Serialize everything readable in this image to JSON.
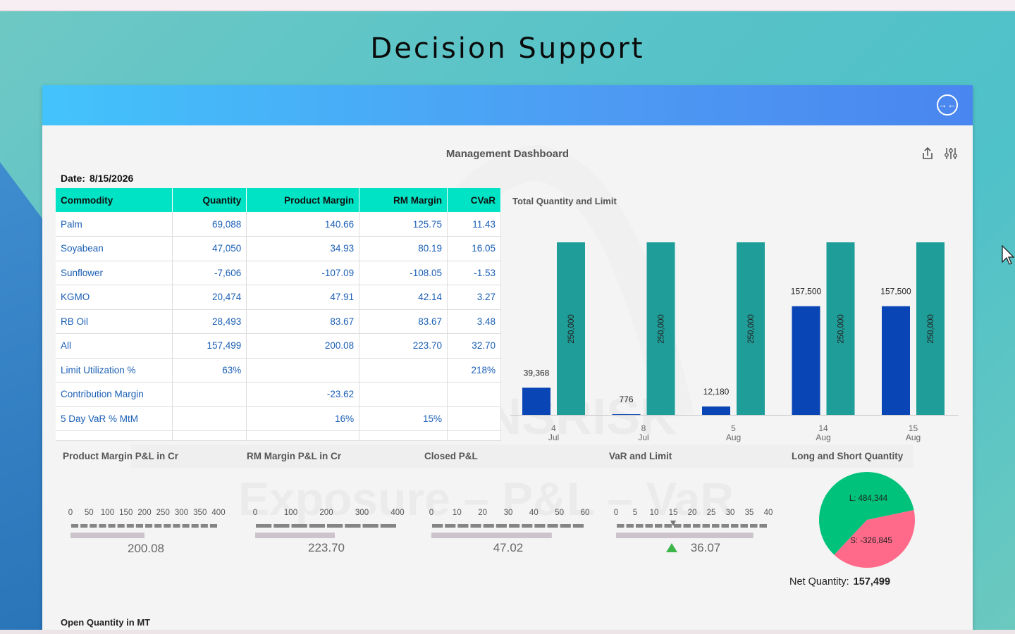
{
  "page": {
    "title": "Decision Support"
  },
  "header": {
    "collapse_icon": "collapse-icon"
  },
  "dashboard": {
    "title": "Management Dashboard",
    "date_label": "Date:",
    "date_value": "8/15/2026",
    "icons": [
      "share-icon",
      "settings-sliders-icon"
    ]
  },
  "table": {
    "columns": [
      "Commodity",
      "Quantity",
      "Product Margin",
      "RM Margin",
      "CVaR"
    ],
    "rows": [
      [
        "Palm",
        "69,088",
        "140.66",
        "125.75",
        "11.43"
      ],
      [
        "Soyabean",
        "47,050",
        "34.93",
        "80.19",
        "16.05"
      ],
      [
        "Sunflower",
        "-7,606",
        "-107.09",
        "-108.05",
        "-1.53"
      ],
      [
        "KGMO",
        "20,474",
        "47.91",
        "42.14",
        "3.27"
      ],
      [
        "RB Oil",
        "28,493",
        "83.67",
        "83.67",
        "3.48"
      ],
      [
        "All",
        "157,499",
        "200.08",
        "223.70",
        "32.70"
      ],
      [
        "Limit Utilization %",
        "63%",
        "",
        "",
        "218%"
      ],
      [
        "Contribution Margin",
        "",
        "-23.62",
        "",
        ""
      ],
      [
        "5 Day VaR % MtM",
        "",
        "16%",
        "15%",
        ""
      ]
    ]
  },
  "chart_data": {
    "type": "bar",
    "title": "Total Quantity and Limit",
    "categories": [
      [
        "4",
        "Jul"
      ],
      [
        "8",
        "Jul"
      ],
      [
        "5",
        "Aug"
      ],
      [
        "14",
        "Aug"
      ],
      [
        "15",
        "Aug"
      ]
    ],
    "series": [
      {
        "values": [
          39368,
          776,
          12180,
          157500,
          157500
        ],
        "labels": [
          "39,368",
          "776",
          "12,180",
          "157,500",
          "157,500"
        ],
        "color": "#0a45b5"
      },
      {
        "values": [
          250000,
          250000,
          250000,
          250000,
          250000
        ],
        "labels": [
          "250,000",
          "250,000",
          "250,000",
          "250,000",
          "250,000"
        ],
        "color": "#1f9d98"
      }
    ],
    "ylim": [
      0,
      250000
    ],
    "grid": false,
    "legend": "none"
  },
  "sections": {
    "product_margin": {
      "label": "Product Margin P&L in Cr",
      "ticks": [
        "0",
        "50",
        "100",
        "150",
        "200",
        "250",
        "300",
        "350",
        "400"
      ],
      "min": 0,
      "max": 400,
      "value": 200.08,
      "value_text": "200.08"
    },
    "rm_margin": {
      "label": "RM Margin P&L in Cr",
      "ticks": [
        "0",
        "100",
        "200",
        "300",
        "400"
      ],
      "min": 0,
      "max": 400,
      "value": 223.7,
      "value_text": "223.70"
    },
    "closed_pl": {
      "label": "Closed P&L",
      "ticks": [
        "0",
        "10",
        "20",
        "30",
        "40",
        "50",
        "60"
      ],
      "min": 0,
      "max": 60,
      "value": 47.02,
      "value_text": "47.02"
    },
    "var_limit": {
      "label": "VaR and Limit",
      "ticks": [
        "0",
        "5",
        "10",
        "15",
        "20",
        "25",
        "30",
        "35",
        "40"
      ],
      "min": 0,
      "max": 40,
      "value": 36.07,
      "value_text": "36.07",
      "marker": 15
    },
    "long_short": {
      "label": "Long and Short Quantity",
      "slices": [
        {
          "label": "L: 484,344",
          "value": 484344,
          "color": "#00c27a"
        },
        {
          "label": "S: -326,845",
          "value": 326845,
          "color": "#ff6a8a"
        }
      ],
      "net_label": "Net Quantity:",
      "net_value": "157,499"
    },
    "open_quantity": {
      "label": "Open Quantity in MT"
    }
  },
  "colors": {
    "header_start": "#43c3fb",
    "header_end": "#4a86f0",
    "table_header": "#00e3c4",
    "link_text": "#1b5fb5"
  }
}
